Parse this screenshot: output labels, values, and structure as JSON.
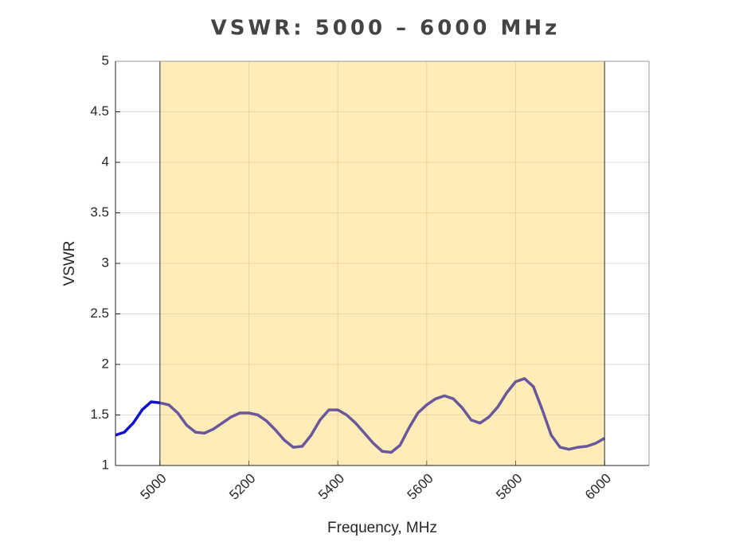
{
  "chart_data": {
    "type": "line",
    "title": "VSWR: 5000 – 6000 MHz",
    "xlabel": "Frequency, MHz",
    "ylabel": "VSWR",
    "x": [
      4900,
      4920,
      4940,
      4960,
      4980,
      5000,
      5020,
      5040,
      5060,
      5080,
      5100,
      5120,
      5140,
      5160,
      5180,
      5200,
      5220,
      5240,
      5260,
      5280,
      5300,
      5320,
      5340,
      5360,
      5380,
      5400,
      5420,
      5440,
      5460,
      5480,
      5500,
      5520,
      5540,
      5560,
      5580,
      5600,
      5620,
      5640,
      5660,
      5680,
      5700,
      5720,
      5740,
      5760,
      5780,
      5800,
      5820,
      5840,
      5860,
      5880,
      5900,
      5920,
      5940,
      5960,
      5980,
      6000
    ],
    "series": [
      {
        "name": "VSWR",
        "color": "#1010d0",
        "values": [
          1.3,
          1.33,
          1.42,
          1.55,
          1.63,
          1.62,
          1.6,
          1.52,
          1.4,
          1.33,
          1.32,
          1.36,
          1.42,
          1.48,
          1.52,
          1.52,
          1.5,
          1.44,
          1.35,
          1.25,
          1.18,
          1.19,
          1.3,
          1.45,
          1.55,
          1.55,
          1.5,
          1.42,
          1.32,
          1.22,
          1.14,
          1.13,
          1.2,
          1.37,
          1.52,
          1.6,
          1.66,
          1.69,
          1.66,
          1.57,
          1.45,
          1.42,
          1.48,
          1.58,
          1.72,
          1.83,
          1.86,
          1.78,
          1.55,
          1.3,
          1.18,
          1.16,
          1.18,
          1.19,
          1.22,
          1.27
        ]
      }
    ],
    "highlight": [
      5000,
      6000
    ],
    "highlight_color": "#ffcc44",
    "xlim": [
      4900,
      6100
    ],
    "ylim": [
      1,
      5
    ],
    "xticks": [
      5000,
      5200,
      5400,
      5600,
      5800,
      6000
    ],
    "yticks": [
      1,
      1.5,
      2,
      2.5,
      3,
      3.5,
      4,
      4.5,
      5
    ],
    "grid": true
  }
}
